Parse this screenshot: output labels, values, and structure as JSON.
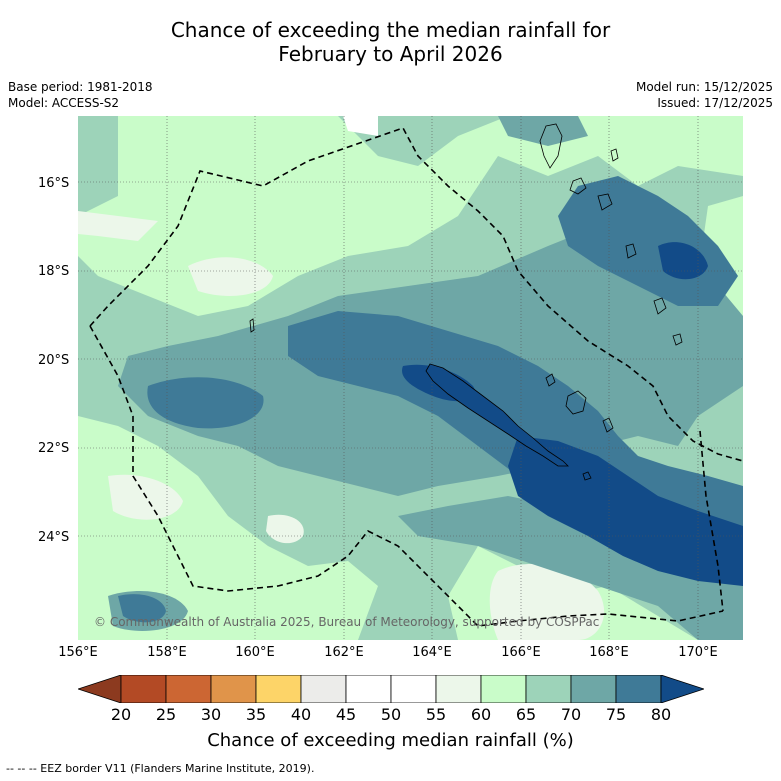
{
  "header": {
    "title_line1": "Chance of exceeding the median rainfall for",
    "title_line2": "February to April 2026",
    "base_period": "Base period: 1981-2018",
    "model": "Model: ACCESS-S2",
    "model_run": "Model run: 15/12/2025",
    "issued": "Issued: 17/12/2025"
  },
  "map": {
    "lat_labels": [
      "16°S",
      "18°S",
      "20°S",
      "22°S",
      "24°S"
    ],
    "lon_labels": [
      "156°E",
      "158°E",
      "160°E",
      "162°E",
      "164°E",
      "166°E",
      "168°E",
      "170°E"
    ],
    "copyright": "© Commonwealth of Australia 2025, Bureau of Meteorology, supported by COSPPac"
  },
  "colorbar": {
    "ticks": [
      "20",
      "25",
      "30",
      "35",
      "40",
      "45",
      "50",
      "55",
      "60",
      "65",
      "70",
      "75",
      "80"
    ],
    "title": "Chance of exceeding median rainfall (%)",
    "colors": [
      "#8c3a1f",
      "#b34a25",
      "#cc6633",
      "#e0944a",
      "#fdd468",
      "#ececea",
      "#ffffff",
      "#ffffff",
      "#ecf7ea",
      "#c9fcc9",
      "#9dd3b9",
      "#6ea7a6",
      "#3f7a97",
      "#124b88"
    ]
  },
  "footnote": "-- -- -- EEZ border V11 (Flanders Marine Institute, 2019)."
}
